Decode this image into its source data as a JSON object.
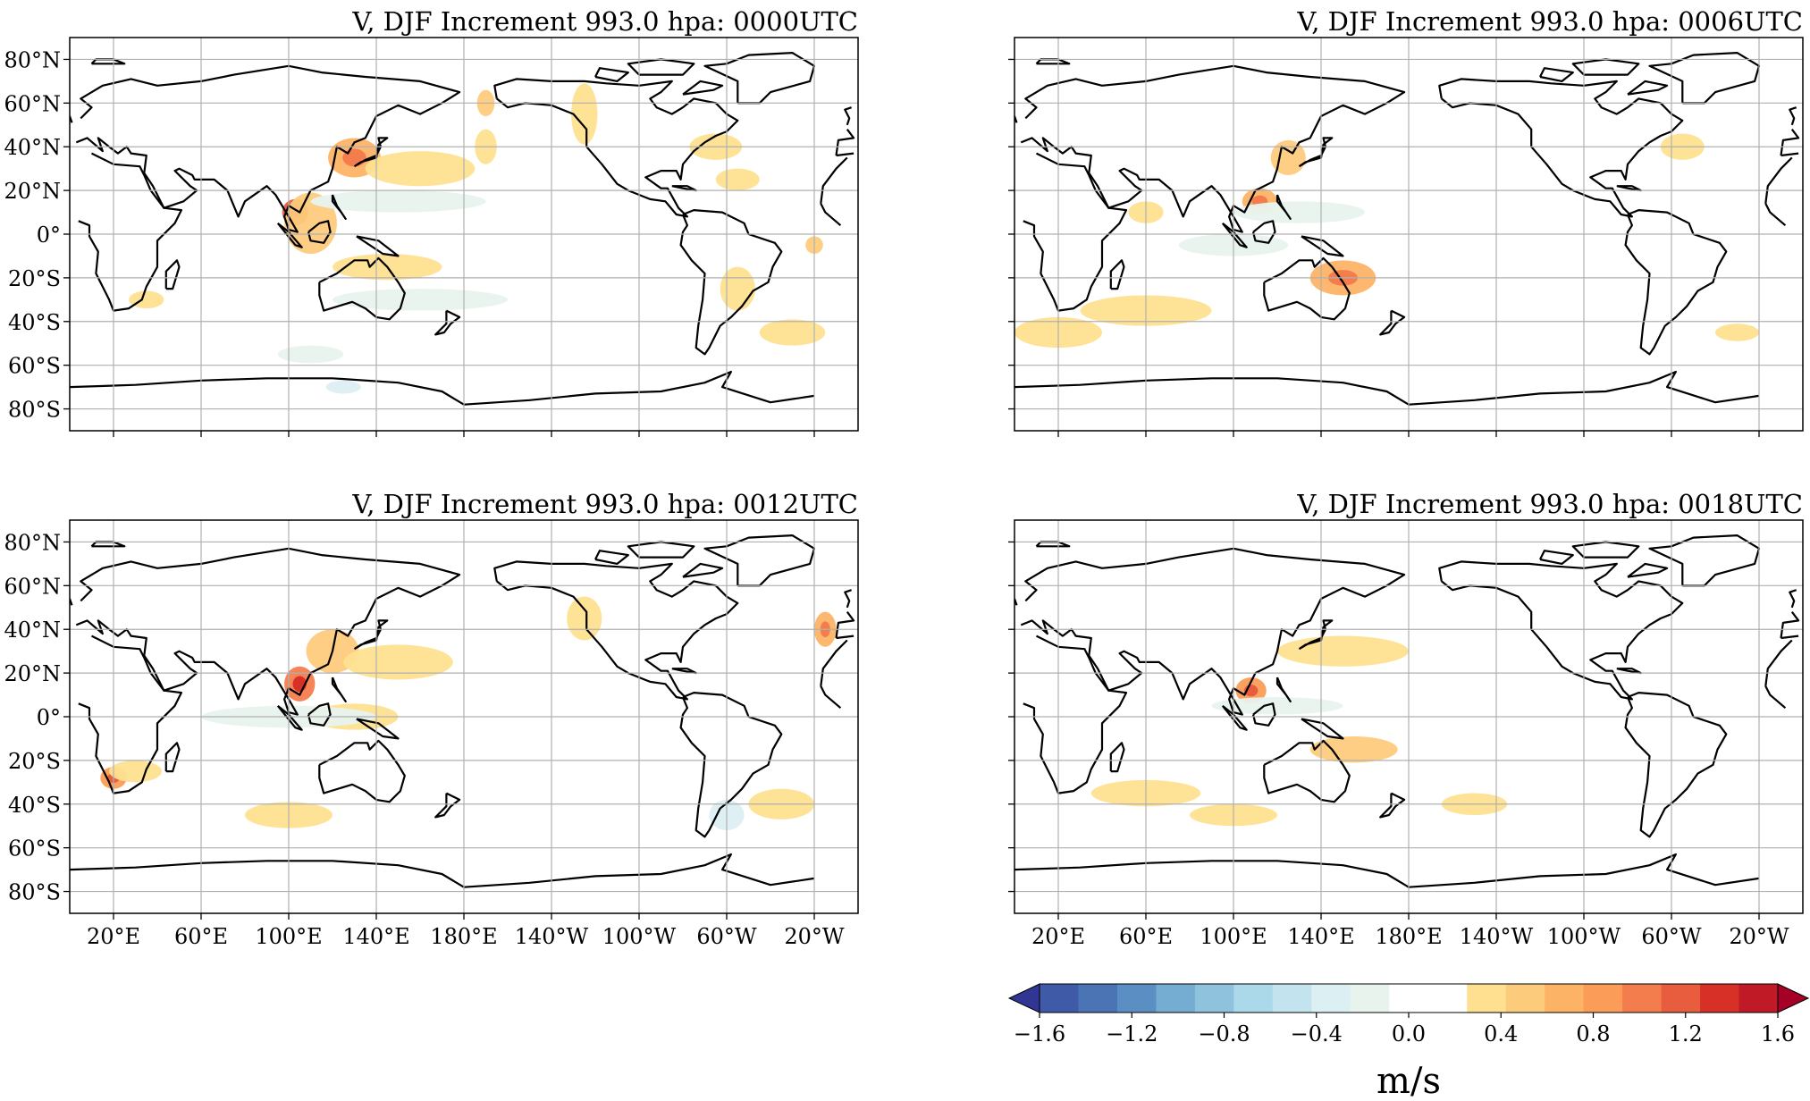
{
  "panels": [
    {
      "id": "p0000",
      "title": "V, DJF Increment 993.0 hpa:  0000UTC",
      "show_lat_labels": true,
      "show_lon_labels": false,
      "blobs": [
        {
          "lon": -170,
          "lat": 40,
          "rx": 5,
          "ry": 8,
          "level": 1
        },
        {
          "lon": -170,
          "lat": 60,
          "rx": 4,
          "ry": 6,
          "level": 2
        },
        {
          "lon": 103,
          "lat": 10,
          "rx": 6,
          "ry": 6,
          "level": 6
        },
        {
          "lon": 110,
          "lat": 5,
          "rx": 12,
          "ry": 14,
          "level": 2
        },
        {
          "lon": 130,
          "lat": 35,
          "rx": 12,
          "ry": 9,
          "level": 3
        },
        {
          "lon": 160,
          "lat": 30,
          "rx": 25,
          "ry": 8,
          "level": 1
        },
        {
          "lon": 150,
          "lat": 15,
          "rx": 40,
          "ry": 5,
          "level": -1
        },
        {
          "lon": 145,
          "lat": -15,
          "rx": 25,
          "ry": 6,
          "level": 1
        },
        {
          "lon": 160,
          "lat": -30,
          "rx": 40,
          "ry": 5,
          "level": -1
        },
        {
          "lon": -125,
          "lat": 55,
          "rx": 6,
          "ry": 14,
          "level": 1
        },
        {
          "lon": -65,
          "lat": 40,
          "rx": 12,
          "ry": 6,
          "level": 1
        },
        {
          "lon": -55,
          "lat": 25,
          "rx": 10,
          "ry": 5,
          "level": 1
        },
        {
          "lon": -55,
          "lat": -25,
          "rx": 8,
          "ry": 10,
          "level": 1
        },
        {
          "lon": -30,
          "lat": -45,
          "rx": 15,
          "ry": 6,
          "level": 1
        },
        {
          "lon": -20,
          "lat": -5,
          "rx": 4,
          "ry": 4,
          "level": 2
        },
        {
          "lon": 35,
          "lat": -30,
          "rx": 8,
          "ry": 4,
          "level": 1
        },
        {
          "lon": 110,
          "lat": -55,
          "rx": 15,
          "ry": 4,
          "level": -1
        },
        {
          "lon": 125,
          "lat": -70,
          "rx": 8,
          "ry": 3,
          "level": -2
        }
      ]
    },
    {
      "id": "p0006",
      "title": "V, DJF Increment 993.0 hpa:  0006UTC",
      "show_lat_labels": false,
      "show_lon_labels": false,
      "blobs": [
        {
          "lon": 125,
          "lat": 35,
          "rx": 8,
          "ry": 8,
          "level": 2
        },
        {
          "lon": 112,
          "lat": 15,
          "rx": 8,
          "ry": 6,
          "level": 3
        },
        {
          "lon": 130,
          "lat": 10,
          "rx": 30,
          "ry": 5,
          "level": -1
        },
        {
          "lon": 100,
          "lat": -5,
          "rx": 25,
          "ry": 5,
          "level": -1
        },
        {
          "lon": 150,
          "lat": -20,
          "rx": 15,
          "ry": 8,
          "level": 3
        },
        {
          "lon": 60,
          "lat": -35,
          "rx": 30,
          "ry": 7,
          "level": 1
        },
        {
          "lon": 20,
          "lat": -45,
          "rx": 20,
          "ry": 7,
          "level": 1
        },
        {
          "lon": -30,
          "lat": -45,
          "rx": 10,
          "ry": 4,
          "level": 1
        },
        {
          "lon": -55,
          "lat": 40,
          "rx": 10,
          "ry": 6,
          "level": 1
        },
        {
          "lon": 60,
          "lat": 10,
          "rx": 8,
          "ry": 5,
          "level": 1
        }
      ]
    },
    {
      "id": "p0012",
      "title": "V, DJF Increment 993.0 hpa:  0012UTC",
      "show_lat_labels": true,
      "show_lon_labels": true,
      "blobs": [
        {
          "lon": 105,
          "lat": 15,
          "rx": 7,
          "ry": 8,
          "level": 5
        },
        {
          "lon": 120,
          "lat": 30,
          "rx": 12,
          "ry": 10,
          "level": 2
        },
        {
          "lon": 150,
          "lat": 25,
          "rx": 25,
          "ry": 8,
          "level": 1
        },
        {
          "lon": 130,
          "lat": 0,
          "rx": 20,
          "ry": 6,
          "level": 1
        },
        {
          "lon": 20,
          "lat": -28,
          "rx": 6,
          "ry": 5,
          "level": 4
        },
        {
          "lon": 30,
          "lat": -25,
          "rx": 12,
          "ry": 5,
          "level": 1
        },
        {
          "lon": 100,
          "lat": -45,
          "rx": 20,
          "ry": 6,
          "level": 1
        },
        {
          "lon": -60,
          "lat": -45,
          "rx": 8,
          "ry": 7,
          "level": -2
        },
        {
          "lon": -35,
          "lat": -40,
          "rx": 15,
          "ry": 7,
          "level": 1
        },
        {
          "lon": -15,
          "lat": 40,
          "rx": 5,
          "ry": 8,
          "level": 3
        },
        {
          "lon": -125,
          "lat": 45,
          "rx": 8,
          "ry": 10,
          "level": 1
        },
        {
          "lon": 100,
          "lat": 0,
          "rx": 40,
          "ry": 5,
          "level": -1
        }
      ]
    },
    {
      "id": "p0018",
      "title": "V, DJF Increment 993.0 hpa:  0018UTC",
      "show_lat_labels": false,
      "show_lon_labels": true,
      "blobs": [
        {
          "lon": 108,
          "lat": 12,
          "rx": 7,
          "ry": 6,
          "level": 4
        },
        {
          "lon": 150,
          "lat": 30,
          "rx": 30,
          "ry": 7,
          "level": 1
        },
        {
          "lon": 155,
          "lat": -15,
          "rx": 20,
          "ry": 6,
          "level": 2
        },
        {
          "lon": 60,
          "lat": -35,
          "rx": 25,
          "ry": 6,
          "level": 1
        },
        {
          "lon": 100,
          "lat": -45,
          "rx": 20,
          "ry": 5,
          "level": 1
        },
        {
          "lon": 120,
          "lat": 5,
          "rx": 30,
          "ry": 4,
          "level": -1
        },
        {
          "lon": -150,
          "lat": -40,
          "rx": 15,
          "ry": 5,
          "level": 1
        }
      ]
    }
  ],
  "axes": {
    "lat_labels": [
      "80°N",
      "60°N",
      "40°N",
      "20°N",
      "0°",
      "20°S",
      "40°S",
      "60°S",
      "80°S"
    ],
    "lat_values": [
      80,
      60,
      40,
      20,
      0,
      -20,
      -40,
      -60,
      -80
    ],
    "lon_labels": [
      "20°E",
      "60°E",
      "100°E",
      "140°E",
      "180°E",
      "140°W",
      "100°W",
      "60°W",
      "20°W"
    ],
    "lon_values": [
      20,
      60,
      100,
      140,
      180,
      -140,
      -100,
      -60,
      -20
    ],
    "lon_range_note": "central longitude 180"
  },
  "colorbar": {
    "label": "m/s",
    "tick_labels": [
      "−1.6",
      "−1.2",
      "−0.8",
      "−0.4",
      "0.0",
      "0.4",
      "0.8",
      "1.2",
      "1.6"
    ],
    "tick_values": [
      -1.6,
      -1.2,
      -0.8,
      -0.4,
      0.0,
      0.4,
      0.8,
      1.2,
      1.6
    ],
    "colors": [
      "#313695",
      "#3f5ba7",
      "#4a74b4",
      "#5b8fc3",
      "#74add1",
      "#8fc3dd",
      "#abd9e9",
      "#c3e3ee",
      "#dceff3",
      "#e8f3ee",
      "#ffffff",
      "#ffffff",
      "#fee090",
      "#fdcb7c",
      "#fdb366",
      "#fb9d59",
      "#f47d4d",
      "#e85d3e",
      "#d73027",
      "#c01a27",
      "#a50026"
    ],
    "extend": "both"
  }
}
